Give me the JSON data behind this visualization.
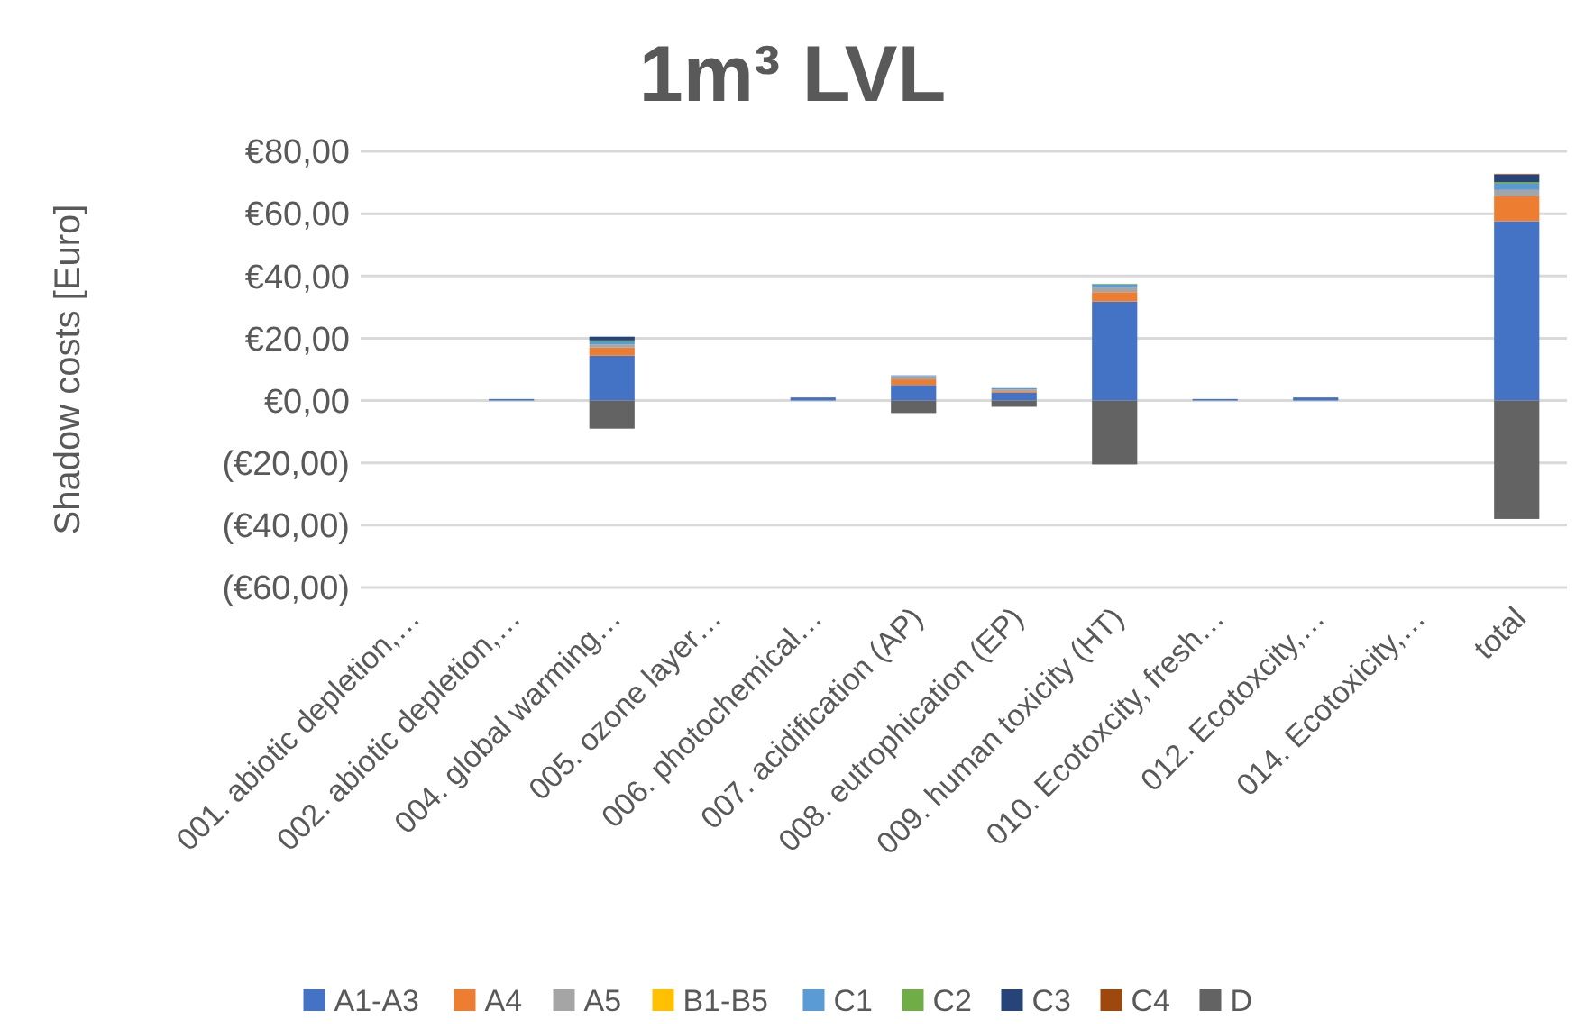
{
  "chart_data": {
    "type": "bar",
    "stacked": true,
    "title": "1m³ LVL",
    "ylabel": "Shadow costs [Euro]",
    "categories": [
      "001. abiotic depletion,…",
      "002. abiotic depletion,…",
      "004. global warming…",
      "005. ozone layer…",
      "006. photochemical…",
      "007. acidification (AP)",
      "008. eutrophication (EP)",
      "009. human toxicity (HT)",
      "010. Ecotoxcity, fresh…",
      "012. Ecotoxcity,…",
      "014. Ecotoxicity,…",
      "total"
    ],
    "series": [
      {
        "name": "A1-A3",
        "color": "#4472c4",
        "values": [
          0,
          0.5,
          14.4,
          0,
          1,
          5,
          2.5,
          31.8,
          0.5,
          1,
          0,
          57.6
        ]
      },
      {
        "name": "A4",
        "color": "#ed7d31",
        "values": [
          0,
          0,
          2.6,
          0,
          0,
          1.8,
          0.5,
          3,
          0,
          0,
          0,
          8
        ]
      },
      {
        "name": "A5",
        "color": "#a5a5a5",
        "values": [
          0,
          0,
          1,
          0,
          0,
          1,
          0.5,
          1.5,
          0,
          0,
          0,
          2
        ]
      },
      {
        "name": "B1-B5",
        "color": "#ffc000",
        "values": [
          0,
          0,
          0,
          0,
          0,
          0,
          0,
          0,
          0,
          0,
          0,
          0
        ]
      },
      {
        "name": "C1",
        "color": "#5b9bd5",
        "values": [
          0,
          0,
          1,
          0,
          0,
          0.3,
          0.5,
          1,
          0,
          0,
          0,
          2
        ]
      },
      {
        "name": "C2",
        "color": "#70ad47",
        "values": [
          0,
          0,
          0.3,
          0,
          0,
          0,
          0,
          0.2,
          0,
          0,
          0,
          0.5
        ]
      },
      {
        "name": "C3",
        "color": "#264478",
        "values": [
          0,
          0,
          1.2,
          0,
          0,
          0,
          0,
          0,
          0,
          0,
          0,
          2.5
        ]
      },
      {
        "name": "C4",
        "color": "#9e480e",
        "values": [
          0,
          0,
          0,
          0,
          0,
          0,
          0,
          0,
          0,
          0,
          0,
          0.2
        ]
      },
      {
        "name": "D",
        "color": "#636363",
        "values": [
          0,
          0,
          -9,
          0,
          0,
          -4,
          -2,
          -20.5,
          0,
          0,
          0,
          -38
        ]
      }
    ],
    "ylim": [
      -60,
      80
    ],
    "yticks": [
      {
        "value": -60,
        "label": "(€60,00)"
      },
      {
        "value": -40,
        "label": "(€40,00)"
      },
      {
        "value": -20,
        "label": "(€20,00)"
      },
      {
        "value": 0,
        "label": "€0,00"
      },
      {
        "value": 20,
        "label": "€20,00"
      },
      {
        "value": 40,
        "label": "€40,00"
      },
      {
        "value": 60,
        "label": "€60,00"
      },
      {
        "value": 80,
        "label": "€80,00"
      }
    ],
    "grid": true,
    "legend": "bottom"
  }
}
